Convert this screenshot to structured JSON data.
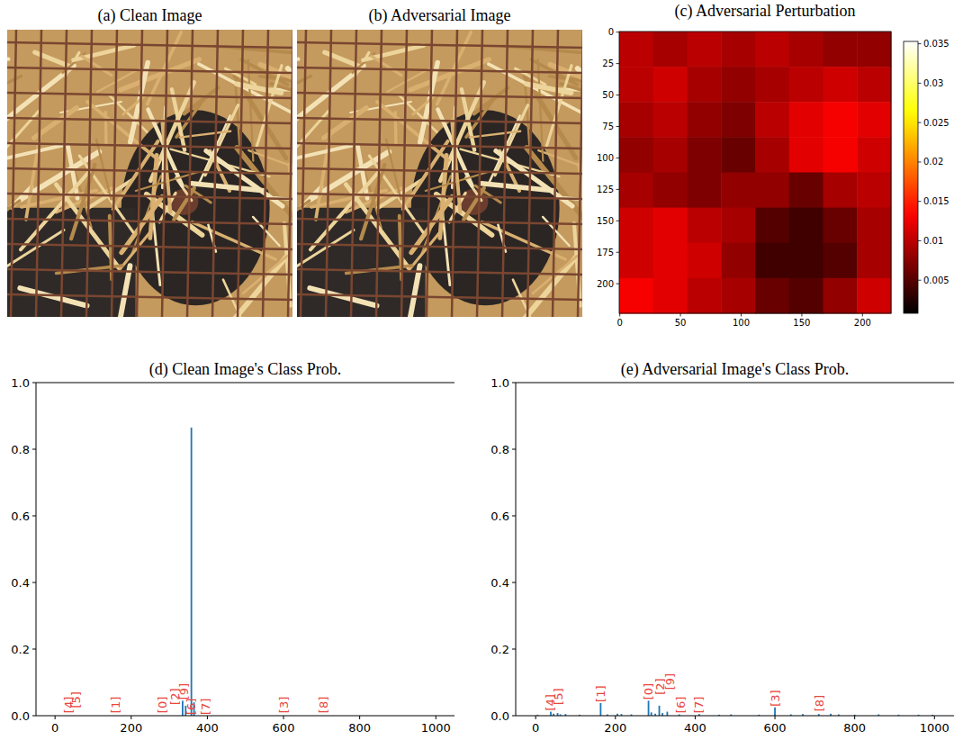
{
  "chart_data": [
    {
      "type": "image",
      "title": "(a) Clean Image"
    },
    {
      "type": "image",
      "title": "(b) Adversarial Image"
    },
    {
      "type": "heatmap",
      "title": "(c) Adversarial Perturbation",
      "xlim": [
        -0.5,
        223.5
      ],
      "ylim": [
        223.5,
        -0.5
      ],
      "xticks": [
        0,
        50,
        100,
        150,
        200
      ],
      "yticks": [
        0,
        25,
        50,
        75,
        100,
        125,
        150,
        175,
        200
      ],
      "cells": [
        [
          0.01,
          0.009,
          0.01,
          0.009,
          0.01,
          0.009,
          0.008,
          0.008
        ],
        [
          0.01,
          0.011,
          0.009,
          0.008,
          0.009,
          0.01,
          0.011,
          0.01
        ],
        [
          0.009,
          0.01,
          0.008,
          0.007,
          0.01,
          0.012,
          0.013,
          0.012
        ],
        [
          0.008,
          0.009,
          0.007,
          0.006,
          0.009,
          0.012,
          0.013,
          0.011
        ],
        [
          0.009,
          0.008,
          0.007,
          0.008,
          0.008,
          0.006,
          0.009,
          0.01
        ],
        [
          0.011,
          0.012,
          0.01,
          0.009,
          0.005,
          0.004,
          0.006,
          0.009
        ],
        [
          0.011,
          0.012,
          0.011,
          0.008,
          0.004,
          0.004,
          0.005,
          0.009
        ],
        [
          0.013,
          0.012,
          0.01,
          0.009,
          0.006,
          0.005,
          0.008,
          0.011
        ]
      ],
      "colorbar_range": [
        0.0008,
        0.0353
      ],
      "colorbar_ticks": [
        0.005,
        0.01,
        0.015,
        0.02,
        0.025,
        0.03,
        0.035
      ]
    },
    {
      "type": "bar",
      "title": "(d) Clean Image's Class Prob.",
      "x": [
        335,
        343,
        358,
        365
      ],
      "values": [
        0.045,
        0.03,
        0.865,
        0.04
      ],
      "color": "#1f77b4",
      "xlim": [
        -50,
        1049
      ],
      "ylim": [
        0,
        1
      ],
      "xticks": [
        0,
        200,
        400,
        600,
        800,
        1000
      ],
      "yticks": [
        {
          "value": 0,
          "label": "0.0"
        },
        0.2,
        0.4,
        0.6,
        0.8,
        {
          "value": 1,
          "label": "1.0"
        }
      ],
      "annotations": [
        {
          "text": "[4]",
          "x": 35,
          "y": 0.005
        },
        {
          "text": "[5]",
          "x": 55,
          "y": 0.02
        },
        {
          "text": "[1]",
          "x": 160,
          "y": 0.005
        },
        {
          "text": "[0]",
          "x": 282,
          "y": 0.005
        },
        {
          "text": "[2]",
          "x": 315,
          "y": 0.03
        },
        {
          "text": "[9]",
          "x": 338,
          "y": 0.045
        },
        {
          "text": "[6]",
          "x": 357,
          "y": 0.0
        },
        {
          "text": "[7]",
          "x": 395,
          "y": 0.0
        },
        {
          "text": "[3]",
          "x": 600,
          "y": 0.005
        },
        {
          "text": "[8]",
          "x": 705,
          "y": 0.005
        }
      ]
    },
    {
      "type": "bar",
      "title": "(e) Adversarial Image's Class Prob.",
      "x": [
        5,
        38,
        45,
        55,
        62,
        75,
        110,
        163,
        180,
        205,
        215,
        240,
        283,
        290,
        300,
        310,
        318,
        330,
        360,
        410,
        460,
        490,
        560,
        600,
        640,
        670,
        710,
        740,
        760,
        800,
        860,
        910,
        960,
        995
      ],
      "values": [
        0.003,
        0.012,
        0.006,
        0.008,
        0.004,
        0.005,
        0.003,
        0.038,
        0.004,
        0.006,
        0.005,
        0.004,
        0.045,
        0.01,
        0.006,
        0.03,
        0.008,
        0.012,
        0.004,
        0.005,
        0.003,
        0.004,
        0.003,
        0.025,
        0.004,
        0.005,
        0.005,
        0.006,
        0.004,
        0.003,
        0.004,
        0.003,
        0.003,
        0.003
      ],
      "color": "#1f77b4",
      "xlim": [
        -50,
        1049
      ],
      "ylim": [
        0,
        1
      ],
      "xticks": [
        0,
        200,
        400,
        600,
        800,
        1000
      ],
      "yticks": [
        {
          "value": 0,
          "label": "0.0"
        },
        0.2,
        0.4,
        0.6,
        0.8,
        {
          "value": 1,
          "label": "1.0"
        }
      ],
      "annotations": [
        {
          "text": "[4]",
          "x": 37,
          "y": 0.012
        },
        {
          "text": "[5]",
          "x": 58,
          "y": 0.03
        },
        {
          "text": "[1]",
          "x": 163,
          "y": 0.038
        },
        {
          "text": "[0]",
          "x": 282,
          "y": 0.045
        },
        {
          "text": "[2]",
          "x": 312,
          "y": 0.06
        },
        {
          "text": "[9]",
          "x": 338,
          "y": 0.075
        },
        {
          "text": "[6]",
          "x": 365,
          "y": 0.005
        },
        {
          "text": "[7]",
          "x": 410,
          "y": 0.005
        },
        {
          "text": "[3]",
          "x": 600,
          "y": 0.025
        },
        {
          "text": "[8]",
          "x": 712,
          "y": 0.01
        }
      ]
    }
  ]
}
